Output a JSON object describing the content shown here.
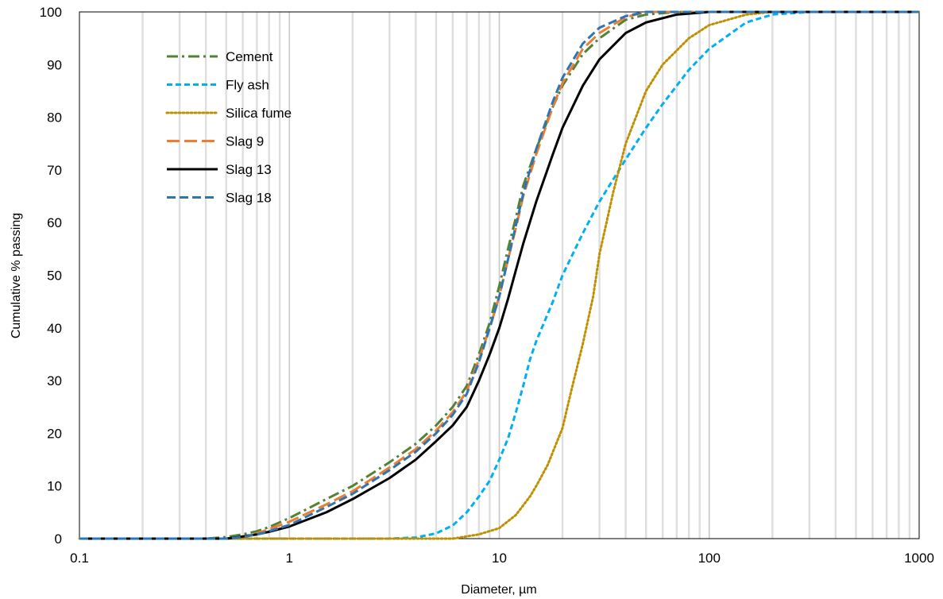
{
  "chart_data": {
    "type": "line",
    "title": "",
    "xlabel": "Diameter, µm",
    "ylabel": "Cumulative % passing",
    "x_scale": "log",
    "xlim": [
      0.1,
      1000
    ],
    "ylim": [
      0,
      100
    ],
    "x_ticks": [
      "0.1",
      "1",
      "10",
      "100",
      "1000"
    ],
    "y_ticks": [
      "0",
      "10",
      "20",
      "30",
      "40",
      "50",
      "60",
      "70",
      "80",
      "90",
      "100"
    ],
    "grid": "vertical minor and major gridlines",
    "legend_position": "top-left",
    "series": [
      {
        "name": "Cement",
        "color": "#548235",
        "dash": "dash-dot",
        "points": [
          [
            0.1,
            0
          ],
          [
            0.4,
            0
          ],
          [
            0.5,
            0.3
          ],
          [
            0.6,
            0.8
          ],
          [
            0.7,
            1.4
          ],
          [
            0.8,
            2.2
          ],
          [
            1,
            3.9
          ],
          [
            1.5,
            7.5
          ],
          [
            2,
            10
          ],
          [
            3,
            14.5
          ],
          [
            4,
            18
          ],
          [
            5,
            21.5
          ],
          [
            6,
            25
          ],
          [
            7,
            29
          ],
          [
            8,
            35
          ],
          [
            9,
            41
          ],
          [
            10,
            48
          ],
          [
            11,
            55
          ],
          [
            12,
            61
          ],
          [
            13,
            67
          ],
          [
            15,
            74
          ],
          [
            18,
            82
          ],
          [
            20,
            86
          ],
          [
            25,
            92
          ],
          [
            30,
            95
          ],
          [
            40,
            98.5
          ],
          [
            50,
            99.5
          ],
          [
            70,
            100
          ],
          [
            1000,
            100
          ]
        ]
      },
      {
        "name": "Fly ash",
        "color": "#00B0F0",
        "dash": "short-dash",
        "points": [
          [
            0.1,
            0
          ],
          [
            3,
            0
          ],
          [
            4,
            0.2
          ],
          [
            5,
            1
          ],
          [
            6,
            2.5
          ],
          [
            7,
            5
          ],
          [
            8,
            8
          ],
          [
            9,
            11
          ],
          [
            10,
            15
          ],
          [
            11,
            19
          ],
          [
            12,
            24
          ],
          [
            13,
            29
          ],
          [
            14,
            34
          ],
          [
            15,
            37.5
          ],
          [
            18,
            45
          ],
          [
            20,
            50
          ],
          [
            25,
            58
          ],
          [
            30,
            64
          ],
          [
            40,
            72
          ],
          [
            50,
            78
          ],
          [
            60,
            82.5
          ],
          [
            80,
            89
          ],
          [
            100,
            93
          ],
          [
            150,
            98
          ],
          [
            200,
            99.5
          ],
          [
            300,
            100
          ],
          [
            1000,
            100
          ]
        ]
      },
      {
        "name": "Silica fume",
        "color": "#BF9000",
        "dash": "dot",
        "points": [
          [
            0.1,
            0
          ],
          [
            6,
            0
          ],
          [
            8,
            0.8
          ],
          [
            10,
            2
          ],
          [
            12,
            4.5
          ],
          [
            14,
            8
          ],
          [
            15,
            10
          ],
          [
            17,
            14
          ],
          [
            20,
            21
          ],
          [
            22,
            28
          ],
          [
            25,
            37
          ],
          [
            28,
            46
          ],
          [
            30,
            54
          ],
          [
            35,
            66
          ],
          [
            40,
            75
          ],
          [
            50,
            85
          ],
          [
            60,
            90
          ],
          [
            80,
            95
          ],
          [
            100,
            97.5
          ],
          [
            150,
            99.5
          ],
          [
            200,
            100
          ],
          [
            1000,
            100
          ]
        ]
      },
      {
        "name": "Slag 9",
        "color": "#ED7D31",
        "dash": "long-dash",
        "points": [
          [
            0.1,
            0
          ],
          [
            0.5,
            0
          ],
          [
            0.6,
            0.4
          ],
          [
            0.7,
            1
          ],
          [
            0.8,
            1.8
          ],
          [
            1,
            3.2
          ],
          [
            1.5,
            6.5
          ],
          [
            2,
            9
          ],
          [
            3,
            13.5
          ],
          [
            4,
            17
          ],
          [
            5,
            20.5
          ],
          [
            6,
            24
          ],
          [
            7,
            28
          ],
          [
            8,
            34
          ],
          [
            9,
            40
          ],
          [
            10,
            46
          ],
          [
            11,
            53
          ],
          [
            12,
            59
          ],
          [
            13,
            65
          ],
          [
            15,
            73
          ],
          [
            18,
            82
          ],
          [
            20,
            86.5
          ],
          [
            25,
            93
          ],
          [
            30,
            96
          ],
          [
            40,
            99
          ],
          [
            50,
            100
          ],
          [
            1000,
            100
          ]
        ]
      },
      {
        "name": "Slag 13",
        "color": "#000000",
        "dash": "solid",
        "points": [
          [
            0.1,
            0
          ],
          [
            0.5,
            0
          ],
          [
            0.6,
            0.4
          ],
          [
            0.7,
            0.8
          ],
          [
            0.8,
            1.3
          ],
          [
            1,
            2.3
          ],
          [
            1.5,
            5
          ],
          [
            2,
            7.5
          ],
          [
            3,
            11.5
          ],
          [
            4,
            15
          ],
          [
            5,
            18.5
          ],
          [
            6,
            21.5
          ],
          [
            7,
            25
          ],
          [
            8,
            30
          ],
          [
            9,
            35
          ],
          [
            10,
            40
          ],
          [
            11,
            45.5
          ],
          [
            12,
            51
          ],
          [
            13,
            56
          ],
          [
            15,
            64
          ],
          [
            18,
            73
          ],
          [
            20,
            78
          ],
          [
            25,
            86
          ],
          [
            30,
            91
          ],
          [
            40,
            96
          ],
          [
            50,
            98
          ],
          [
            70,
            99.5
          ],
          [
            100,
            100
          ],
          [
            1000,
            100
          ]
        ]
      },
      {
        "name": "Slag 18",
        "color": "#2E75B6",
        "dash": "dash",
        "points": [
          [
            0.1,
            0
          ],
          [
            0.5,
            0
          ],
          [
            0.6,
            0.3
          ],
          [
            0.7,
            0.8
          ],
          [
            0.8,
            1.4
          ],
          [
            1,
            2.6
          ],
          [
            1.5,
            6
          ],
          [
            2,
            8.5
          ],
          [
            3,
            13
          ],
          [
            4,
            16.5
          ],
          [
            5,
            20
          ],
          [
            6,
            23.5
          ],
          [
            7,
            27.5
          ],
          [
            8,
            33.5
          ],
          [
            9,
            40
          ],
          [
            10,
            46
          ],
          [
            11,
            53
          ],
          [
            12,
            59.5
          ],
          [
            13,
            65.5
          ],
          [
            15,
            74
          ],
          [
            18,
            83
          ],
          [
            20,
            87.5
          ],
          [
            25,
            94
          ],
          [
            30,
            97
          ],
          [
            40,
            99.2
          ],
          [
            50,
            100
          ],
          [
            1000,
            100
          ]
        ]
      }
    ]
  }
}
